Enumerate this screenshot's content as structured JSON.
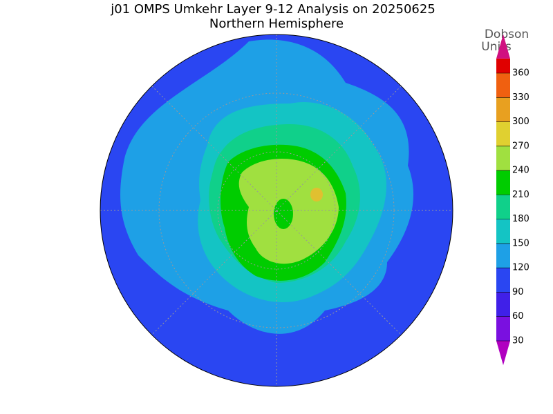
{
  "map": {
    "title": "j01 OMPS Umkehr Layer 9-12 Analysis on 20250625",
    "subtitle": "Northern Hemisphere",
    "colorbar": {
      "label": [
        "Dobson",
        "Units"
      ],
      "lim": [
        30,
        360
      ],
      "ticks": [
        30,
        60,
        90,
        120,
        150,
        180,
        210,
        240,
        270,
        300,
        330,
        360
      ],
      "colors": [
        "#b000c0",
        "#7a10e0",
        "#4020e8",
        "#2a46f2",
        "#1ea0e6",
        "#14c4c4",
        "#10d08a",
        "#00cc00",
        "#a0e040",
        "#e0d030",
        "#e8a020",
        "#f06010",
        "#e00000",
        "#d01080"
      ]
    }
  }
}
